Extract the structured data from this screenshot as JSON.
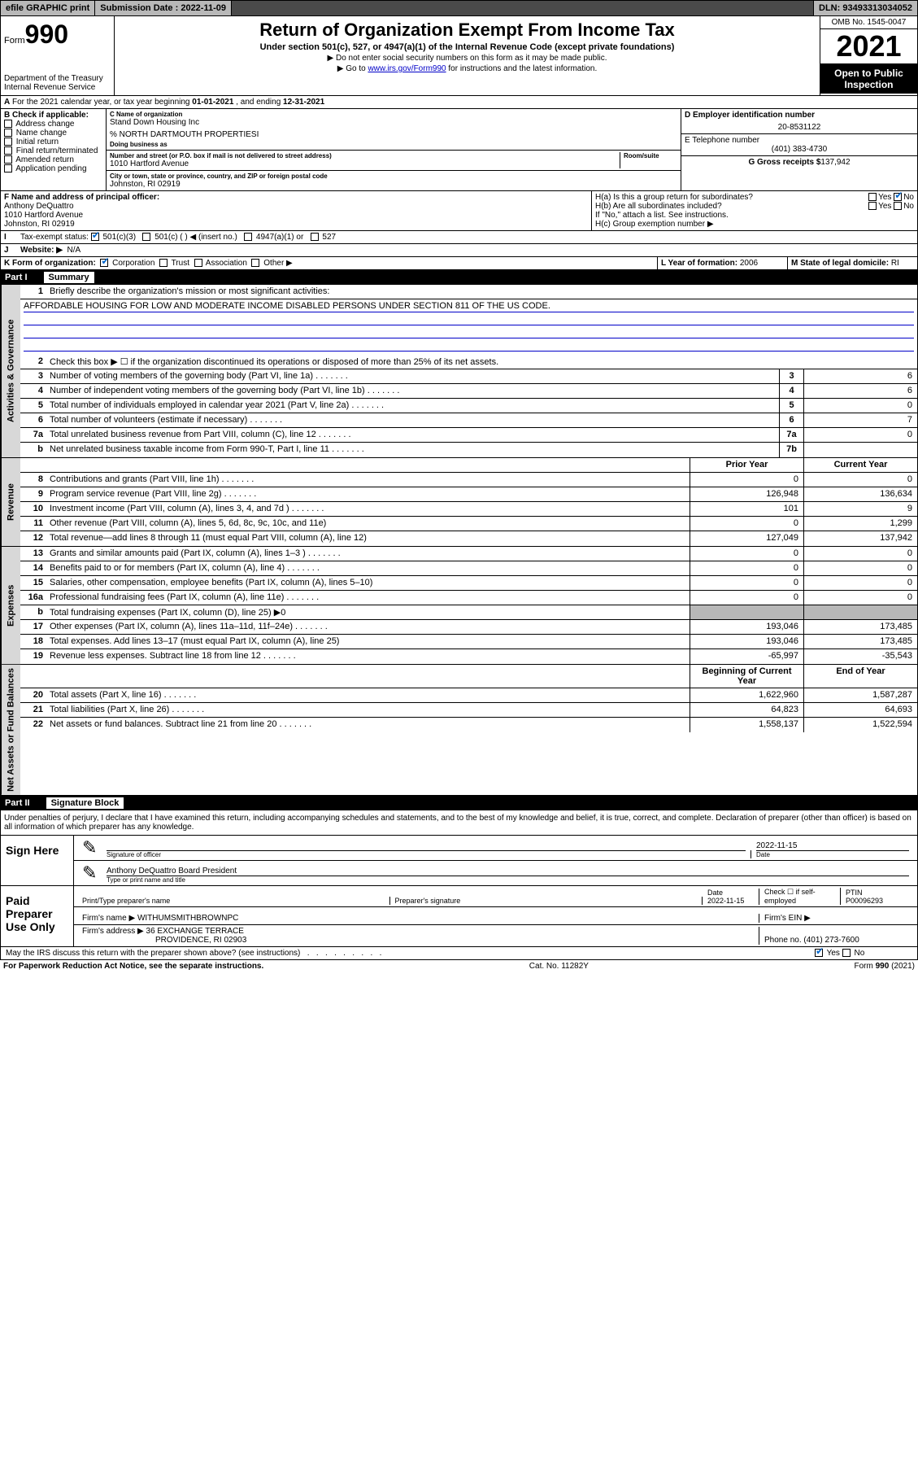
{
  "topbar": {
    "efile": "efile GRAPHIC print",
    "subdate_label": "Submission Date :",
    "subdate": "2022-11-09",
    "dln_label": "DLN:",
    "dln": "93493313034052"
  },
  "header": {
    "form_prefix": "Form",
    "form_num": "990",
    "title": "Return of Organization Exempt From Income Tax",
    "sub": "Under section 501(c), 527, or 4947(a)(1) of the Internal Revenue Code (except private foundations)",
    "note1": "▶ Do not enter social security numbers on this form as it may be made public.",
    "note2_pre": "▶ Go to ",
    "note2_link": "www.irs.gov/Form990",
    "note2_post": " for instructions and the latest information.",
    "dept": "Department of the Treasury\nInternal Revenue Service",
    "omb": "OMB No. 1545-0047",
    "year": "2021",
    "open": "Open to Public Inspection"
  },
  "rowA": {
    "text_pre": "For the 2021 calendar year, or tax year beginning ",
    "beg": "01-01-2021",
    "mid": " , and ending ",
    "end": "12-31-2021"
  },
  "colB": {
    "label": "B Check if applicable:",
    "items": [
      "Address change",
      "Name change",
      "Initial return",
      "Final return/terminated",
      "Amended return",
      "Application pending"
    ]
  },
  "colC": {
    "name_label": "C Name of organization",
    "name": "Stand Down Housing Inc",
    "care": "% NORTH DARTMOUTH PROPERTIESI",
    "dba_label": "Doing business as",
    "addr_label": "Number and street (or P.O. box if mail is not delivered to street address)",
    "room_label": "Room/suite",
    "addr": "1010 Hartford Avenue",
    "city_label": "City or town, state or province, country, and ZIP or foreign postal code",
    "city": "Johnston, RI  02919"
  },
  "colD": {
    "ein_label": "D Employer identification number",
    "ein": "20-8531122",
    "phone_label": "E Telephone number",
    "phone": "(401) 383-4730",
    "gross_label": "G Gross receipts $",
    "gross": "137,942"
  },
  "rowF": {
    "f_label": "F Name and address of principal officer:",
    "f_name": "Anthony DeQuattro",
    "f_addr": "1010 Hartford Avenue\nJohnston, RI  02919",
    "ha": "H(a)  Is this a group return for subordinates?",
    "hb": "H(b)  Are all subordinates included?",
    "hb_note": "If \"No,\" attach a list. See instructions.",
    "hc": "H(c)  Group exemption number ▶"
  },
  "rowI": {
    "label": "Tax-exempt status:",
    "opts": [
      "501(c)(3)",
      "501(c) (  ) ◀ (insert no.)",
      "4947(a)(1) or",
      "527"
    ]
  },
  "rowJ": {
    "label": "Website: ▶",
    "val": "N/A"
  },
  "rowK": {
    "label": "K Form of organization:",
    "opts": [
      "Corporation",
      "Trust",
      "Association",
      "Other ▶"
    ],
    "l_label": "L Year of formation:",
    "l_val": "2006",
    "m_label": "M State of legal domicile:",
    "m_val": "RI"
  },
  "partI": {
    "num": "Part I",
    "title": "Summary"
  },
  "sections": [
    {
      "vlabel": "Activities & Governance",
      "lines": [
        {
          "n": "1",
          "desc": "Briefly describe the organization's mission or most significant activities:",
          "mission": true
        },
        {
          "mission_text": "AFFORDABLE HOUSING FOR LOW AND MODERATE INCOME DISABLED PERSONS UNDER SECTION 811 OF THE US CODE."
        },
        {
          "n": "2",
          "desc": "Check this box ▶ ☐  if the organization discontinued its operations or disposed of more than 25% of its net assets.",
          "nobox": true
        },
        {
          "n": "3",
          "desc": "Number of voting members of the governing body (Part VI, line 1a)",
          "dots": true,
          "box": "3",
          "val": "6"
        },
        {
          "n": "4",
          "desc": "Number of independent voting members of the governing body (Part VI, line 1b)",
          "dots": true,
          "box": "4",
          "val": "6"
        },
        {
          "n": "5",
          "desc": "Total number of individuals employed in calendar year 2021 (Part V, line 2a)",
          "dots": true,
          "box": "5",
          "val": "0"
        },
        {
          "n": "6",
          "desc": "Total number of volunteers (estimate if necessary)",
          "dots": true,
          "box": "6",
          "val": "7"
        },
        {
          "n": "7a",
          "desc": "Total unrelated business revenue from Part VIII, column (C), line 12",
          "dots": true,
          "box": "7a",
          "val": "0"
        },
        {
          "n": "b",
          "desc": "Net unrelated business taxable income from Form 990-T, Part I, line 11",
          "dots": true,
          "box": "7b",
          "val": ""
        }
      ]
    },
    {
      "vlabel": "Revenue",
      "header": {
        "c1": "Prior Year",
        "c2": "Current Year"
      },
      "lines": [
        {
          "n": "8",
          "desc": "Contributions and grants (Part VIII, line 1h)",
          "dots": true,
          "v1": "0",
          "v2": "0"
        },
        {
          "n": "9",
          "desc": "Program service revenue (Part VIII, line 2g)",
          "dots": true,
          "v1": "126,948",
          "v2": "136,634"
        },
        {
          "n": "10",
          "desc": "Investment income (Part VIII, column (A), lines 3, 4, and 7d )",
          "dots": true,
          "v1": "101",
          "v2": "9"
        },
        {
          "n": "11",
          "desc": "Other revenue (Part VIII, column (A), lines 5, 6d, 8c, 9c, 10c, and 11e)",
          "v1": "0",
          "v2": "1,299"
        },
        {
          "n": "12",
          "desc": "Total revenue—add lines 8 through 11 (must equal Part VIII, column (A), line 12)",
          "v1": "127,049",
          "v2": "137,942"
        }
      ]
    },
    {
      "vlabel": "Expenses",
      "lines": [
        {
          "n": "13",
          "desc": "Grants and similar amounts paid (Part IX, column (A), lines 1–3 )",
          "dots": true,
          "v1": "0",
          "v2": "0"
        },
        {
          "n": "14",
          "desc": "Benefits paid to or for members (Part IX, column (A), line 4)",
          "dots": true,
          "v1": "0",
          "v2": "0"
        },
        {
          "n": "15",
          "desc": "Salaries, other compensation, employee benefits (Part IX, column (A), lines 5–10)",
          "v1": "0",
          "v2": "0"
        },
        {
          "n": "16a",
          "desc": "Professional fundraising fees (Part IX, column (A), line 11e)",
          "dots": true,
          "v1": "0",
          "v2": "0"
        },
        {
          "n": "b",
          "desc": "Total fundraising expenses (Part IX, column (D), line 25) ▶0",
          "shade": true
        },
        {
          "n": "17",
          "desc": "Other expenses (Part IX, column (A), lines 11a–11d, 11f–24e)",
          "dots": true,
          "v1": "193,046",
          "v2": "173,485"
        },
        {
          "n": "18",
          "desc": "Total expenses. Add lines 13–17 (must equal Part IX, column (A), line 25)",
          "v1": "193,046",
          "v2": "173,485"
        },
        {
          "n": "19",
          "desc": "Revenue less expenses. Subtract line 18 from line 12",
          "dots": true,
          "v1": "-65,997",
          "v2": "-35,543"
        }
      ]
    },
    {
      "vlabel": "Net Assets or Fund Balances",
      "header": {
        "c1": "Beginning of Current Year",
        "c2": "End of Year"
      },
      "lines": [
        {
          "n": "20",
          "desc": "Total assets (Part X, line 16)",
          "dots": true,
          "v1": "1,622,960",
          "v2": "1,587,287"
        },
        {
          "n": "21",
          "desc": "Total liabilities (Part X, line 26)",
          "dots": true,
          "v1": "64,823",
          "v2": "64,693"
        },
        {
          "n": "22",
          "desc": "Net assets or fund balances. Subtract line 21 from line 20",
          "dots": true,
          "v1": "1,558,137",
          "v2": "1,522,594"
        }
      ]
    }
  ],
  "partII": {
    "num": "Part II",
    "title": "Signature Block"
  },
  "penalties": "Under penalties of perjury, I declare that I have examined this return, including accompanying schedules and statements, and to the best of my knowledge and belief, it is true, correct, and complete. Declaration of preparer (other than officer) is based on all information of which preparer has any knowledge.",
  "sign": {
    "here": "Sign Here",
    "sig_label": "Signature of officer",
    "date_label": "Date",
    "date": "2022-11-15",
    "name": "Anthony DeQuattro Board President",
    "name_label": "Type or print name and title"
  },
  "preparer": {
    "label": "Paid Preparer Use Only",
    "cols": [
      "Print/Type preparer's name",
      "Preparer's signature",
      "Date",
      "",
      "PTIN"
    ],
    "date": "2022-11-15",
    "check_label": "Check ☐ if self-employed",
    "ptin": "P00096293",
    "firm_label": "Firm's name    ▶",
    "firm": "WITHUMSMITHBROWNPC",
    "ein_label": "Firm's EIN ▶",
    "addr_label": "Firm's address ▶",
    "addr": "36 EXCHANGE TERRACE",
    "addr2": "PROVIDENCE, RI  02903",
    "phone_label": "Phone no.",
    "phone": "(401) 273-7600"
  },
  "discuss": "May the IRS discuss this return with the preparer shown above? (see instructions)",
  "footer": {
    "left": "For Paperwork Reduction Act Notice, see the separate instructions.",
    "mid": "Cat. No. 11282Y",
    "right": "Form 990 (2021)"
  }
}
